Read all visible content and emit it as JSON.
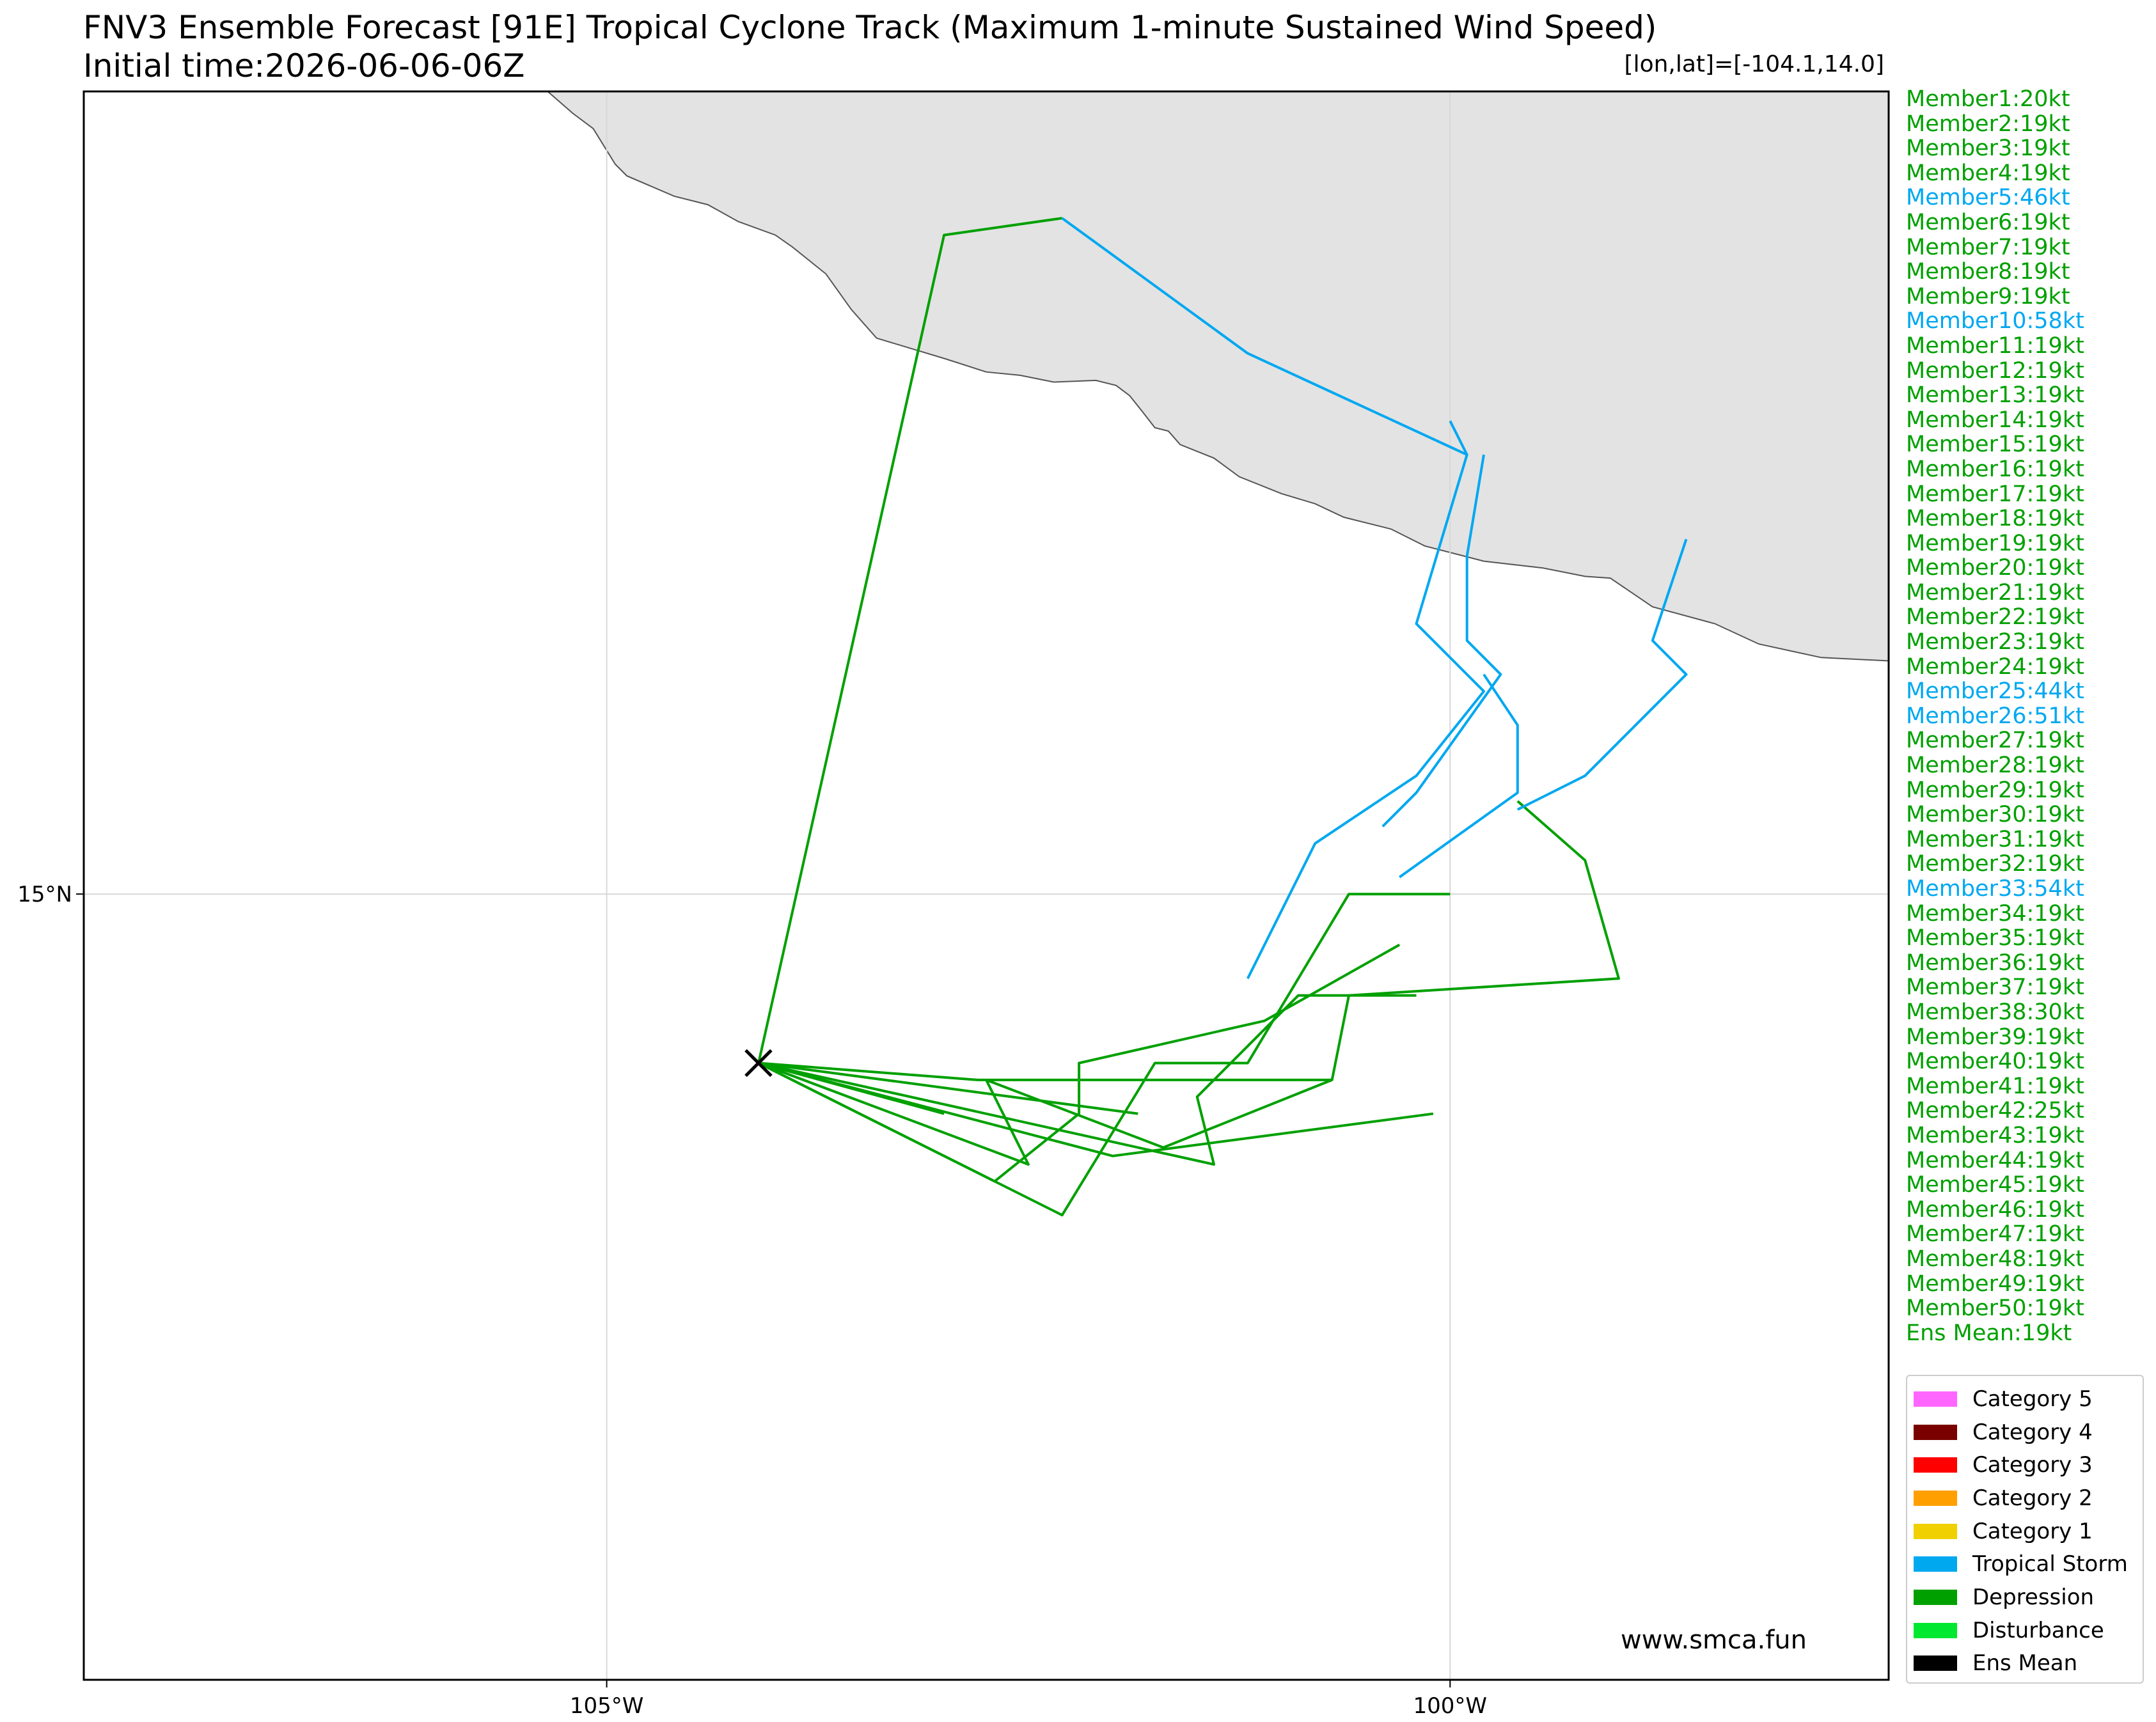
{
  "title": "FNV3 Ensemble Forecast [91E] Tropical Cyclone Track (Maximum 1-minute Sustained Wind Speed)",
  "subtitle": "Initial time:2026-06-06-06Z",
  "coordinate_readout": "[lon,lat]=[-104.1,14.0]",
  "watermark": "www.smca.fun",
  "colors": {
    "depression": "#00a000",
    "tropical_storm": "#00a8f0",
    "land": "#e3e3e3",
    "coastline": "#555555",
    "grid": "#d8d8d8"
  },
  "members": [
    {
      "label": "Member1:20kt",
      "category": "depression"
    },
    {
      "label": "Member2:19kt",
      "category": "depression"
    },
    {
      "label": "Member3:19kt",
      "category": "depression"
    },
    {
      "label": "Member4:19kt",
      "category": "depression"
    },
    {
      "label": "Member5:46kt",
      "category": "tropical_storm"
    },
    {
      "label": "Member6:19kt",
      "category": "depression"
    },
    {
      "label": "Member7:19kt",
      "category": "depression"
    },
    {
      "label": "Member8:19kt",
      "category": "depression"
    },
    {
      "label": "Member9:19kt",
      "category": "depression"
    },
    {
      "label": "Member10:58kt",
      "category": "tropical_storm"
    },
    {
      "label": "Member11:19kt",
      "category": "depression"
    },
    {
      "label": "Member12:19kt",
      "category": "depression"
    },
    {
      "label": "Member13:19kt",
      "category": "depression"
    },
    {
      "label": "Member14:19kt",
      "category": "depression"
    },
    {
      "label": "Member15:19kt",
      "category": "depression"
    },
    {
      "label": "Member16:19kt",
      "category": "depression"
    },
    {
      "label": "Member17:19kt",
      "category": "depression"
    },
    {
      "label": "Member18:19kt",
      "category": "depression"
    },
    {
      "label": "Member19:19kt",
      "category": "depression"
    },
    {
      "label": "Member20:19kt",
      "category": "depression"
    },
    {
      "label": "Member21:19kt",
      "category": "depression"
    },
    {
      "label": "Member22:19kt",
      "category": "depression"
    },
    {
      "label": "Member23:19kt",
      "category": "depression"
    },
    {
      "label": "Member24:19kt",
      "category": "depression"
    },
    {
      "label": "Member25:44kt",
      "category": "tropical_storm"
    },
    {
      "label": "Member26:51kt",
      "category": "tropical_storm"
    },
    {
      "label": "Member27:19kt",
      "category": "depression"
    },
    {
      "label": "Member28:19kt",
      "category": "depression"
    },
    {
      "label": "Member29:19kt",
      "category": "depression"
    },
    {
      "label": "Member30:19kt",
      "category": "depression"
    },
    {
      "label": "Member31:19kt",
      "category": "depression"
    },
    {
      "label": "Member32:19kt",
      "category": "depression"
    },
    {
      "label": "Member33:54kt",
      "category": "tropical_storm"
    },
    {
      "label": "Member34:19kt",
      "category": "depression"
    },
    {
      "label": "Member35:19kt",
      "category": "depression"
    },
    {
      "label": "Member36:19kt",
      "category": "depression"
    },
    {
      "label": "Member37:19kt",
      "category": "depression"
    },
    {
      "label": "Member38:30kt",
      "category": "depression"
    },
    {
      "label": "Member39:19kt",
      "category": "depression"
    },
    {
      "label": "Member40:19kt",
      "category": "depression"
    },
    {
      "label": "Member41:19kt",
      "category": "depression"
    },
    {
      "label": "Member42:25kt",
      "category": "depression"
    },
    {
      "label": "Member43:19kt",
      "category": "depression"
    },
    {
      "label": "Member44:19kt",
      "category": "depression"
    },
    {
      "label": "Member45:19kt",
      "category": "depression"
    },
    {
      "label": "Member46:19kt",
      "category": "depression"
    },
    {
      "label": "Member47:19kt",
      "category": "depression"
    },
    {
      "label": "Member48:19kt",
      "category": "depression"
    },
    {
      "label": "Member49:19kt",
      "category": "depression"
    },
    {
      "label": "Member50:19kt",
      "category": "depression"
    },
    {
      "label": "Ens Mean:19kt",
      "category": "depression"
    }
  ],
  "legend": [
    {
      "label": "Category 5",
      "color": "#ff66ff"
    },
    {
      "label": "Category 4",
      "color": "#7a0000"
    },
    {
      "label": "Category 3",
      "color": "#ff0000"
    },
    {
      "label": "Category 2",
      "color": "#ffa000"
    },
    {
      "label": "Category 1",
      "color": "#f0d000"
    },
    {
      "label": "Tropical Storm",
      "color": "#00a8f0"
    },
    {
      "label": "Depression",
      "color": "#00a000"
    },
    {
      "label": "Disturbance",
      "color": "#00e830"
    },
    {
      "label": "Ens Mean",
      "color": "#000000"
    }
  ],
  "chart_data": {
    "type": "line",
    "title": "FNV3 Ensemble Forecast [91E] Tropical Cyclone Track (Maximum 1-minute Sustained Wind Speed)",
    "xlim": [
      -108.1,
      -97.4
    ],
    "ylim": [
      10.35,
      19.75
    ],
    "x_ticks": [
      {
        "value": -105,
        "label": "105°W"
      },
      {
        "value": -100,
        "label": "100°W"
      }
    ],
    "y_ticks": [
      {
        "value": 15,
        "label": "15°N"
      }
    ],
    "grid": true,
    "initial_position": {
      "lon": -104.1,
      "lat": 14.0,
      "marker": "x"
    },
    "coastline": [
      [
        -105.35,
        19.75
      ],
      [
        -105.2,
        19.62
      ],
      [
        -105.08,
        19.53
      ],
      [
        -104.95,
        19.32
      ],
      [
        -104.88,
        19.25
      ],
      [
        -104.6,
        19.13
      ],
      [
        -104.4,
        19.08
      ],
      [
        -104.22,
        18.98
      ],
      [
        -104.0,
        18.9
      ],
      [
        -103.9,
        18.83
      ],
      [
        -103.7,
        18.67
      ],
      [
        -103.55,
        18.46
      ],
      [
        -103.4,
        18.29
      ],
      [
        -103.0,
        18.17
      ],
      [
        -102.75,
        18.09
      ],
      [
        -102.55,
        18.07
      ],
      [
        -102.35,
        18.03
      ],
      [
        -102.1,
        18.04
      ],
      [
        -101.98,
        18.01
      ],
      [
        -101.9,
        17.95
      ],
      [
        -101.82,
        17.85
      ],
      [
        -101.75,
        17.76
      ],
      [
        -101.67,
        17.74
      ],
      [
        -101.6,
        17.66
      ],
      [
        -101.4,
        17.58
      ],
      [
        -101.25,
        17.47
      ],
      [
        -101.0,
        17.37
      ],
      [
        -100.8,
        17.31
      ],
      [
        -100.63,
        17.23
      ],
      [
        -100.35,
        17.16
      ],
      [
        -100.15,
        17.06
      ],
      [
        -99.8,
        16.97
      ],
      [
        -99.45,
        16.93
      ],
      [
        -99.2,
        16.88
      ],
      [
        -99.05,
        16.87
      ],
      [
        -98.8,
        16.7
      ],
      [
        -98.43,
        16.6
      ],
      [
        -98.17,
        16.48
      ],
      [
        -97.8,
        16.4
      ],
      [
        -97.4,
        16.38
      ]
    ],
    "series": [
      {
        "category": "depression",
        "points": [
          [
            -104.1,
            14.0
          ],
          [
            -103.0,
            13.7
          ]
        ]
      },
      {
        "category": "depression",
        "points": [
          [
            -104.1,
            14.0
          ],
          [
            -102.7,
            13.3
          ],
          [
            -102.2,
            13.7
          ],
          [
            -102.2,
            14.0
          ],
          [
            -101.1,
            14.25
          ],
          [
            -100.3,
            14.7
          ]
        ]
      },
      {
        "category": "depression",
        "points": [
          [
            -104.1,
            14.0
          ],
          [
            -102.5,
            13.4
          ],
          [
            -102.75,
            13.9
          ],
          [
            -101.7,
            13.5
          ],
          [
            -101.7,
            13.5
          ],
          [
            -100.7,
            13.9
          ],
          [
            -100.6,
            14.4
          ],
          [
            -99.0,
            14.5
          ],
          [
            -99.2,
            15.2
          ],
          [
            -99.6,
            15.55
          ]
        ]
      },
      {
        "category": "depression",
        "points": [
          [
            -104.1,
            14.0
          ],
          [
            -101.85,
            13.7
          ]
        ]
      },
      {
        "category": "depression",
        "points": [
          [
            -104.1,
            14.0
          ],
          [
            -102.3,
            13.1
          ],
          [
            -101.75,
            14.0
          ],
          [
            -101.2,
            14.0
          ],
          [
            -100.6,
            15.0
          ],
          [
            -100.0,
            15.0
          ]
        ]
      },
      {
        "category": "depression",
        "points": [
          [
            -104.1,
            14.0
          ],
          [
            -101.4,
            13.4
          ],
          [
            -101.5,
            13.8
          ],
          [
            -101.1,
            14.2
          ],
          [
            -100.9,
            14.4
          ],
          [
            -100.2,
            14.4
          ]
        ]
      },
      {
        "category": "depression",
        "points": [
          [
            -104.1,
            14.0
          ],
          [
            -102.8,
            13.9
          ],
          [
            -100.7,
            13.9
          ]
        ]
      },
      {
        "category": "depression",
        "points": [
          [
            -104.1,
            14.0
          ],
          [
            -102.0,
            13.45
          ],
          [
            -100.1,
            13.7
          ]
        ]
      },
      {
        "category": "depression",
        "points": [
          [
            -104.1,
            14.0
          ],
          [
            -103.0,
            18.9
          ],
          [
            -102.3,
            19.0
          ]
        ]
      },
      {
        "category": "tropical_storm",
        "points": [
          [
            -102.3,
            19.0
          ],
          [
            -101.2,
            18.2
          ],
          [
            -99.9,
            17.6
          ]
        ]
      },
      {
        "category": "tropical_storm",
        "points": [
          [
            -101.2,
            14.5
          ],
          [
            -100.8,
            15.3
          ],
          [
            -100.2,
            15.7
          ],
          [
            -99.8,
            16.2
          ],
          [
            -100.2,
            16.6
          ],
          [
            -99.9,
            17.6
          ],
          [
            -100.0,
            17.8
          ]
        ]
      },
      {
        "category": "tropical_storm",
        "points": [
          [
            -100.4,
            15.4
          ],
          [
            -100.2,
            15.6
          ],
          [
            -99.7,
            16.3
          ],
          [
            -99.9,
            16.5
          ],
          [
            -99.9,
            17.0
          ],
          [
            -99.8,
            17.6
          ]
        ]
      },
      {
        "category": "tropical_storm",
        "points": [
          [
            -100.3,
            15.1
          ],
          [
            -99.6,
            15.6
          ],
          [
            -99.6,
            16.0
          ],
          [
            -99.8,
            16.3
          ]
        ]
      },
      {
        "category": "tropical_storm",
        "points": [
          [
            -99.6,
            15.5
          ],
          [
            -99.2,
            15.7
          ],
          [
            -98.6,
            16.3
          ],
          [
            -98.8,
            16.5
          ],
          [
            -98.6,
            17.1
          ]
        ]
      }
    ]
  }
}
